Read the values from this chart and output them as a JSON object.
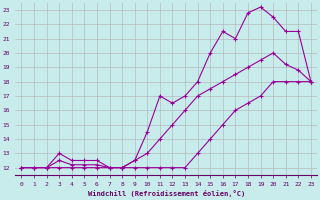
{
  "bg_color": "#c8ecec",
  "line_color": "#990099",
  "grid_color": "#b0b0b0",
  "xlabel": "Windchill (Refroidissement éolien,°C)",
  "xlabel_color": "#660066",
  "tick_color": "#660066",
  "xlim": [
    -0.5,
    23.5
  ],
  "ylim": [
    11.5,
    23.5
  ],
  "xticks": [
    0,
    1,
    2,
    3,
    4,
    5,
    6,
    7,
    8,
    9,
    10,
    11,
    12,
    13,
    14,
    15,
    16,
    17,
    18,
    19,
    20,
    21,
    22,
    23
  ],
  "yticks": [
    12,
    13,
    14,
    15,
    16,
    17,
    18,
    19,
    20,
    21,
    22,
    23
  ],
  "line1_x": [
    0,
    1,
    2,
    3,
    4,
    5,
    6,
    7,
    8,
    9,
    10,
    11,
    12,
    13,
    14,
    15,
    16,
    17,
    18,
    19,
    20,
    21,
    22,
    23
  ],
  "line1_y": [
    12,
    12,
    12,
    12,
    12,
    12,
    12,
    12,
    12,
    12,
    12,
    12,
    12,
    12,
    13,
    14,
    15,
    16,
    16.5,
    17,
    18,
    18,
    18,
    18
  ],
  "line2_x": [
    0,
    1,
    2,
    3,
    4,
    5,
    6,
    7,
    8,
    9,
    10,
    11,
    12,
    13,
    14,
    15,
    16,
    17,
    18,
    19,
    20,
    21,
    22,
    23
  ],
  "line2_y": [
    12,
    12,
    12,
    12.5,
    12.2,
    12.2,
    12.2,
    12,
    12,
    12.5,
    13,
    14,
    15,
    16,
    17,
    17.5,
    18,
    18.5,
    19,
    19.5,
    20,
    19.2,
    18.8,
    18
  ],
  "line3_x": [
    0,
    1,
    2,
    3,
    4,
    5,
    6,
    7,
    8,
    9,
    10,
    11,
    12,
    13,
    14,
    15,
    16,
    17,
    18,
    19,
    20,
    21,
    22,
    23
  ],
  "line3_y": [
    12,
    12,
    12,
    13,
    12.5,
    12.5,
    12.5,
    12,
    12,
    12.5,
    14.5,
    17,
    16.5,
    17,
    18,
    20,
    21.5,
    21,
    22.8,
    23.2,
    22.5,
    21.5,
    21.5,
    18
  ]
}
